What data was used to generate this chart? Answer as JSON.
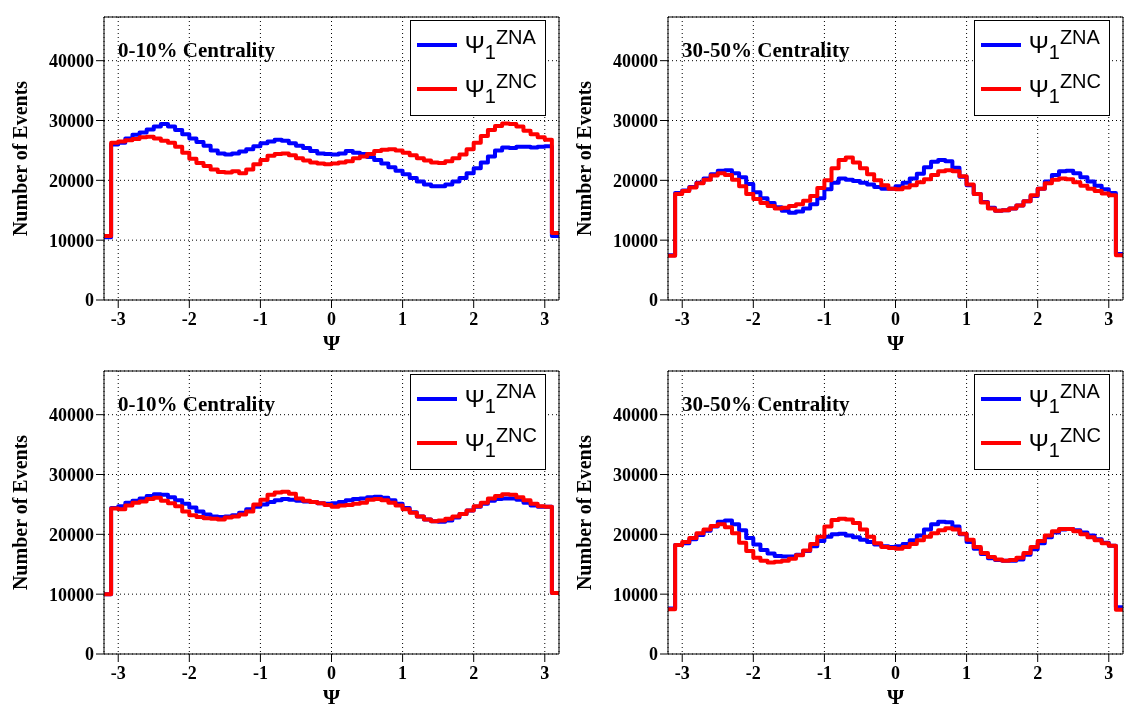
{
  "chart_data": [
    {
      "type": "histogram",
      "xlabel": "Ψ",
      "ylabel": "Number of Events",
      "annotations": [
        "0-10% Centrality"
      ],
      "legend": "top right",
      "grid": true,
      "xlim": [
        -3.2,
        3.2
      ],
      "ylim": [
        0,
        47300
      ],
      "xticks": [
        -3,
        -2,
        -1,
        0,
        1,
        2,
        3
      ],
      "yticks": [
        0,
        10000,
        20000,
        30000,
        40000
      ],
      "bins": [
        -3.2,
        -3.1,
        -3.0,
        -2.9,
        -2.8,
        -2.7,
        -2.6,
        -2.5,
        -2.4,
        -2.3,
        -2.2,
        -2.1,
        -2.0,
        -1.9,
        -1.8,
        -1.7,
        -1.6,
        -1.5,
        -1.4,
        -1.3,
        -1.2,
        -1.1,
        -1.0,
        -0.9,
        -0.8,
        -0.7,
        -0.6,
        -0.5,
        -0.4,
        -0.3,
        -0.2,
        -0.1,
        0,
        0.1,
        0.2,
        0.3,
        0.4,
        0.5,
        0.6,
        0.7,
        0.8,
        0.9,
        1.0,
        1.1,
        1.2,
        1.3,
        1.4,
        1.5,
        1.6,
        1.7,
        1.8,
        1.9,
        2.0,
        2.1,
        2.2,
        2.3,
        2.4,
        2.5,
        2.6,
        2.7,
        2.8,
        2.9,
        3.0,
        3.1,
        3.2
      ],
      "series": [
        {
          "name": "Ψ$_{1}$$^{ZNA}$",
          "color": "#0000ff",
          "values": [
            10500,
            26000,
            26300,
            27000,
            27600,
            28000,
            28500,
            29000,
            29400,
            29000,
            28400,
            27700,
            27000,
            26400,
            25800,
            25000,
            24500,
            24300,
            24500,
            24800,
            25200,
            25700,
            26200,
            26500,
            26800,
            26600,
            26200,
            25800,
            25400,
            24900,
            24500,
            24400,
            24300,
            24500,
            24900,
            24600,
            24400,
            23900,
            23400,
            22800,
            22200,
            21600,
            21000,
            20400,
            19800,
            19300,
            19000,
            19000,
            19300,
            19800,
            20400,
            21200,
            22000,
            23000,
            24000,
            25000,
            25500,
            25400,
            25600,
            25600,
            25500,
            25600,
            25700,
            10700
          ]
        },
        {
          "name": "Ψ$_{1}$$^{ZNC}$",
          "color": "#ff0000",
          "values": [
            10700,
            26300,
            26500,
            26700,
            26900,
            27200,
            27300,
            27000,
            26600,
            26300,
            25600,
            24600,
            23600,
            22900,
            22400,
            21800,
            21400,
            21300,
            21500,
            21200,
            21800,
            22700,
            23400,
            24100,
            24400,
            24500,
            24200,
            23700,
            23300,
            23000,
            22800,
            22700,
            22800,
            23000,
            23200,
            23700,
            24000,
            24400,
            24900,
            25100,
            25200,
            25000,
            24600,
            24200,
            23700,
            23300,
            23000,
            22900,
            23200,
            23700,
            24300,
            25200,
            26300,
            27400,
            28400,
            29100,
            29500,
            29400,
            29000,
            28300,
            27700,
            27200,
            26800,
            11200
          ]
        }
      ]
    },
    {
      "type": "histogram",
      "xlabel": "Ψ",
      "ylabel": "Number of Events",
      "annotations": [
        "30-50% Centrality"
      ],
      "legend": "top right",
      "grid": true,
      "xlim": [
        -3.2,
        3.2
      ],
      "ylim": [
        0,
        47300
      ],
      "xticks": [
        -3,
        -2,
        -1,
        0,
        1,
        2,
        3
      ],
      "yticks": [
        0,
        10000,
        20000,
        30000,
        40000
      ],
      "bins": [
        -3.2,
        -3.1,
        -3.0,
        -2.9,
        -2.8,
        -2.7,
        -2.6,
        -2.5,
        -2.4,
        -2.3,
        -2.2,
        -2.1,
        -2.0,
        -1.9,
        -1.8,
        -1.7,
        -1.6,
        -1.5,
        -1.4,
        -1.3,
        -1.2,
        -1.1,
        -1.0,
        -0.9,
        -0.8,
        -0.7,
        -0.6,
        -0.5,
        -0.4,
        -0.3,
        -0.2,
        -0.1,
        0,
        0.1,
        0.2,
        0.3,
        0.4,
        0.5,
        0.6,
        0.7,
        0.8,
        0.9,
        1.0,
        1.1,
        1.2,
        1.3,
        1.4,
        1.5,
        1.6,
        1.7,
        1.8,
        1.9,
        2.0,
        2.1,
        2.2,
        2.3,
        2.4,
        2.5,
        2.6,
        2.7,
        2.8,
        2.9,
        3.0,
        3.1,
        3.2
      ],
      "series": [
        {
          "name": "Ψ$_{1}$$^{ZNA}$",
          "color": "#0000ff",
          "values": [
            7500,
            17900,
            18300,
            18900,
            19600,
            20300,
            21000,
            21600,
            21700,
            21200,
            20500,
            19400,
            18000,
            17000,
            16200,
            15500,
            14900,
            14600,
            14800,
            15300,
            16000,
            17000,
            18500,
            19600,
            20300,
            20100,
            19900,
            19600,
            19300,
            18900,
            18600,
            18600,
            19000,
            19600,
            20300,
            21100,
            22200,
            23100,
            23400,
            23200,
            22100,
            20600,
            19200,
            17700,
            16400,
            15400,
            14900,
            15000,
            15300,
            15800,
            16500,
            17400,
            18600,
            19800,
            20900,
            21500,
            21600,
            21200,
            20500,
            19800,
            19100,
            18500,
            17900,
            7700
          ]
        },
        {
          "name": "Ψ$_{1}$$^{ZNC}$",
          "color": "#ff0000",
          "values": [
            7400,
            17700,
            18200,
            18800,
            19500,
            20100,
            20800,
            21200,
            20900,
            20100,
            19000,
            17700,
            16900,
            16200,
            15700,
            15300,
            15400,
            15700,
            16000,
            16600,
            17400,
            18700,
            20000,
            22000,
            23400,
            23800,
            23000,
            22000,
            21000,
            20000,
            19200,
            18600,
            18500,
            18800,
            19200,
            19700,
            20200,
            20900,
            21500,
            21700,
            21500,
            20700,
            19300,
            17700,
            16300,
            15300,
            14900,
            15000,
            15300,
            15800,
            16500,
            17500,
            18600,
            19500,
            20100,
            20300,
            20200,
            19700,
            19100,
            18600,
            18200,
            17800,
            17500,
            7500
          ]
        }
      ]
    },
    {
      "type": "histogram",
      "xlabel": "Ψ",
      "ylabel": "Number of Events",
      "annotations": [
        "0-10% Centrality"
      ],
      "legend": "top right",
      "grid": true,
      "xlim": [
        -3.2,
        3.2
      ],
      "ylim": [
        0,
        47300
      ],
      "xticks": [
        -3,
        -2,
        -1,
        0,
        1,
        2,
        3
      ],
      "yticks": [
        0,
        10000,
        20000,
        30000,
        40000
      ],
      "bins": [
        -3.2,
        -3.1,
        -3.0,
        -2.9,
        -2.8,
        -2.7,
        -2.6,
        -2.5,
        -2.4,
        -2.3,
        -2.2,
        -2.1,
        -2.0,
        -1.9,
        -1.8,
        -1.7,
        -1.6,
        -1.5,
        -1.4,
        -1.3,
        -1.2,
        -1.1,
        -1.0,
        -0.9,
        -0.8,
        -0.7,
        -0.6,
        -0.5,
        -0.4,
        -0.3,
        -0.2,
        -0.1,
        0,
        0.1,
        0.2,
        0.3,
        0.4,
        0.5,
        0.6,
        0.7,
        0.8,
        0.9,
        1.0,
        1.1,
        1.2,
        1.3,
        1.4,
        1.5,
        1.6,
        1.7,
        1.8,
        1.9,
        2.0,
        2.1,
        2.2,
        2.3,
        2.4,
        2.5,
        2.6,
        2.7,
        2.8,
        2.9,
        3.0,
        3.1,
        3.2
      ],
      "series": [
        {
          "name": "Ψ$_{1}$$^{ZNA}$",
          "color": "#0000ff",
          "values": [
            10000,
            24400,
            24700,
            25300,
            25600,
            26000,
            26400,
            26700,
            26600,
            26200,
            25700,
            25100,
            24500,
            23800,
            23300,
            23000,
            22900,
            23000,
            23200,
            23600,
            24200,
            24600,
            25000,
            25400,
            25700,
            25900,
            25800,
            25600,
            25500,
            25400,
            25200,
            25100,
            25200,
            25400,
            25700,
            25900,
            26000,
            26200,
            26300,
            26100,
            25700,
            25100,
            24400,
            23700,
            23000,
            22500,
            22200,
            22100,
            22300,
            22800,
            23400,
            24000,
            24600,
            25100,
            25600,
            25900,
            26000,
            26000,
            25800,
            25300,
            24800,
            24600,
            24600,
            10200
          ]
        },
        {
          "name": "Ψ$_{1}$$^{ZNC}$",
          "color": "#ff0000",
          "values": [
            10000,
            24300,
            24200,
            24800,
            25300,
            25500,
            25900,
            26100,
            25600,
            25200,
            24700,
            23800,
            23200,
            22900,
            22700,
            22600,
            22500,
            22800,
            23000,
            23300,
            23800,
            25000,
            25800,
            26600,
            27000,
            27100,
            26800,
            26000,
            25600,
            25400,
            25200,
            24900,
            24600,
            24800,
            24900,
            25100,
            25300,
            25800,
            25900,
            25700,
            25300,
            24800,
            24200,
            23600,
            23000,
            22500,
            22200,
            22300,
            22600,
            23000,
            23400,
            24000,
            24700,
            25300,
            26000,
            26400,
            26700,
            26600,
            26200,
            25700,
            25100,
            24700,
            24600,
            10200
          ]
        }
      ]
    },
    {
      "type": "histogram",
      "xlabel": "Ψ",
      "ylabel": "Number of Events",
      "annotations": [
        "30-50% Centrality"
      ],
      "legend": "top right",
      "grid": true,
      "xlim": [
        -3.2,
        3.2
      ],
      "ylim": [
        0,
        47300
      ],
      "xticks": [
        -3,
        -2,
        -1,
        0,
        1,
        2,
        3
      ],
      "yticks": [
        0,
        10000,
        20000,
        30000,
        40000
      ],
      "bins": [
        -3.2,
        -3.1,
        -3.0,
        -2.9,
        -2.8,
        -2.7,
        -2.6,
        -2.5,
        -2.4,
        -2.3,
        -2.2,
        -2.1,
        -2.0,
        -1.9,
        -1.8,
        -1.7,
        -1.6,
        -1.5,
        -1.4,
        -1.3,
        -1.2,
        -1.1,
        -1.0,
        -0.9,
        -0.8,
        -0.7,
        -0.6,
        -0.5,
        -0.4,
        -0.3,
        -0.2,
        -0.1,
        0,
        0.1,
        0.2,
        0.3,
        0.4,
        0.5,
        0.6,
        0.7,
        0.8,
        0.9,
        1.0,
        1.1,
        1.2,
        1.3,
        1.4,
        1.5,
        1.6,
        1.7,
        1.8,
        1.9,
        2.0,
        2.1,
        2.2,
        2.3,
        2.4,
        2.5,
        2.6,
        2.7,
        2.8,
        2.9,
        3.0,
        3.1,
        3.2
      ],
      "series": [
        {
          "name": "Ψ$_{1}$$^{ZNA}$",
          "color": "#0000ff",
          "values": [
            7600,
            18200,
            18500,
            19200,
            19900,
            20600,
            21300,
            22100,
            22300,
            21700,
            20700,
            19400,
            18300,
            17400,
            16800,
            16400,
            16300,
            16300,
            16600,
            17200,
            18000,
            18900,
            19600,
            20000,
            20100,
            19800,
            19500,
            19100,
            18700,
            18300,
            18000,
            17900,
            18000,
            18400,
            19000,
            19800,
            20800,
            21700,
            22100,
            22000,
            21300,
            20000,
            18700,
            17600,
            16700,
            16000,
            15700,
            15600,
            15600,
            15800,
            16600,
            17500,
            18500,
            19500,
            20300,
            20800,
            20900,
            20700,
            20300,
            19800,
            19200,
            18600,
            18100,
            7800
          ]
        },
        {
          "name": "Ψ$_{1}$$^{ZNC}$",
          "color": "#ff0000",
          "values": [
            7500,
            18200,
            18700,
            19400,
            20200,
            20800,
            21400,
            21700,
            21200,
            20200,
            18600,
            17200,
            16100,
            15600,
            15300,
            15400,
            15600,
            15900,
            16500,
            17300,
            18400,
            19600,
            21300,
            22400,
            22600,
            22500,
            21900,
            20800,
            19600,
            18500,
            17900,
            17700,
            17600,
            17900,
            18400,
            19000,
            19600,
            20200,
            20700,
            21000,
            20800,
            20100,
            19100,
            17900,
            16900,
            16200,
            15800,
            15600,
            15700,
            16100,
            16900,
            17900,
            18900,
            19800,
            20500,
            20900,
            20900,
            20500,
            20000,
            19500,
            19000,
            18500,
            18100,
            7400
          ]
        }
      ]
    }
  ]
}
